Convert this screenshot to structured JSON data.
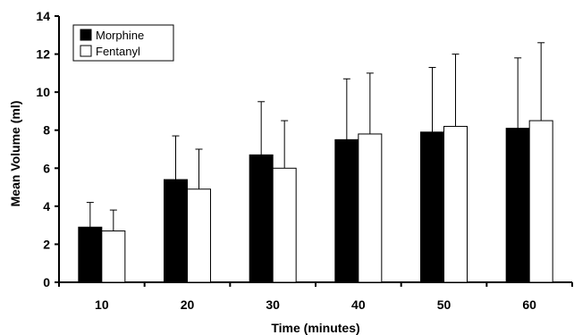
{
  "chart_data": {
    "type": "bar",
    "title": "",
    "xlabel": "Time (minutes)",
    "ylabel": "Mean Volume (ml)",
    "categories": [
      "10",
      "20",
      "30",
      "40",
      "50",
      "60"
    ],
    "ylim": [
      0,
      14
    ],
    "yticks": [
      0,
      2,
      4,
      6,
      8,
      10,
      12,
      14
    ],
    "error_bars": "upper standard deviation",
    "legend_position": "top-left",
    "series": [
      {
        "name": "Morphine",
        "fill": "#000000",
        "values": [
          2.9,
          5.4,
          6.7,
          7.5,
          7.9,
          8.1
        ],
        "errors": [
          1.3,
          2.3,
          2.8,
          3.2,
          3.4,
          3.7
        ]
      },
      {
        "name": "Fentanyl",
        "fill": "#ffffff",
        "values": [
          2.7,
          4.9,
          6.0,
          7.8,
          8.2,
          8.5
        ],
        "errors": [
          1.1,
          2.1,
          2.5,
          3.2,
          3.8,
          4.1
        ]
      }
    ]
  }
}
